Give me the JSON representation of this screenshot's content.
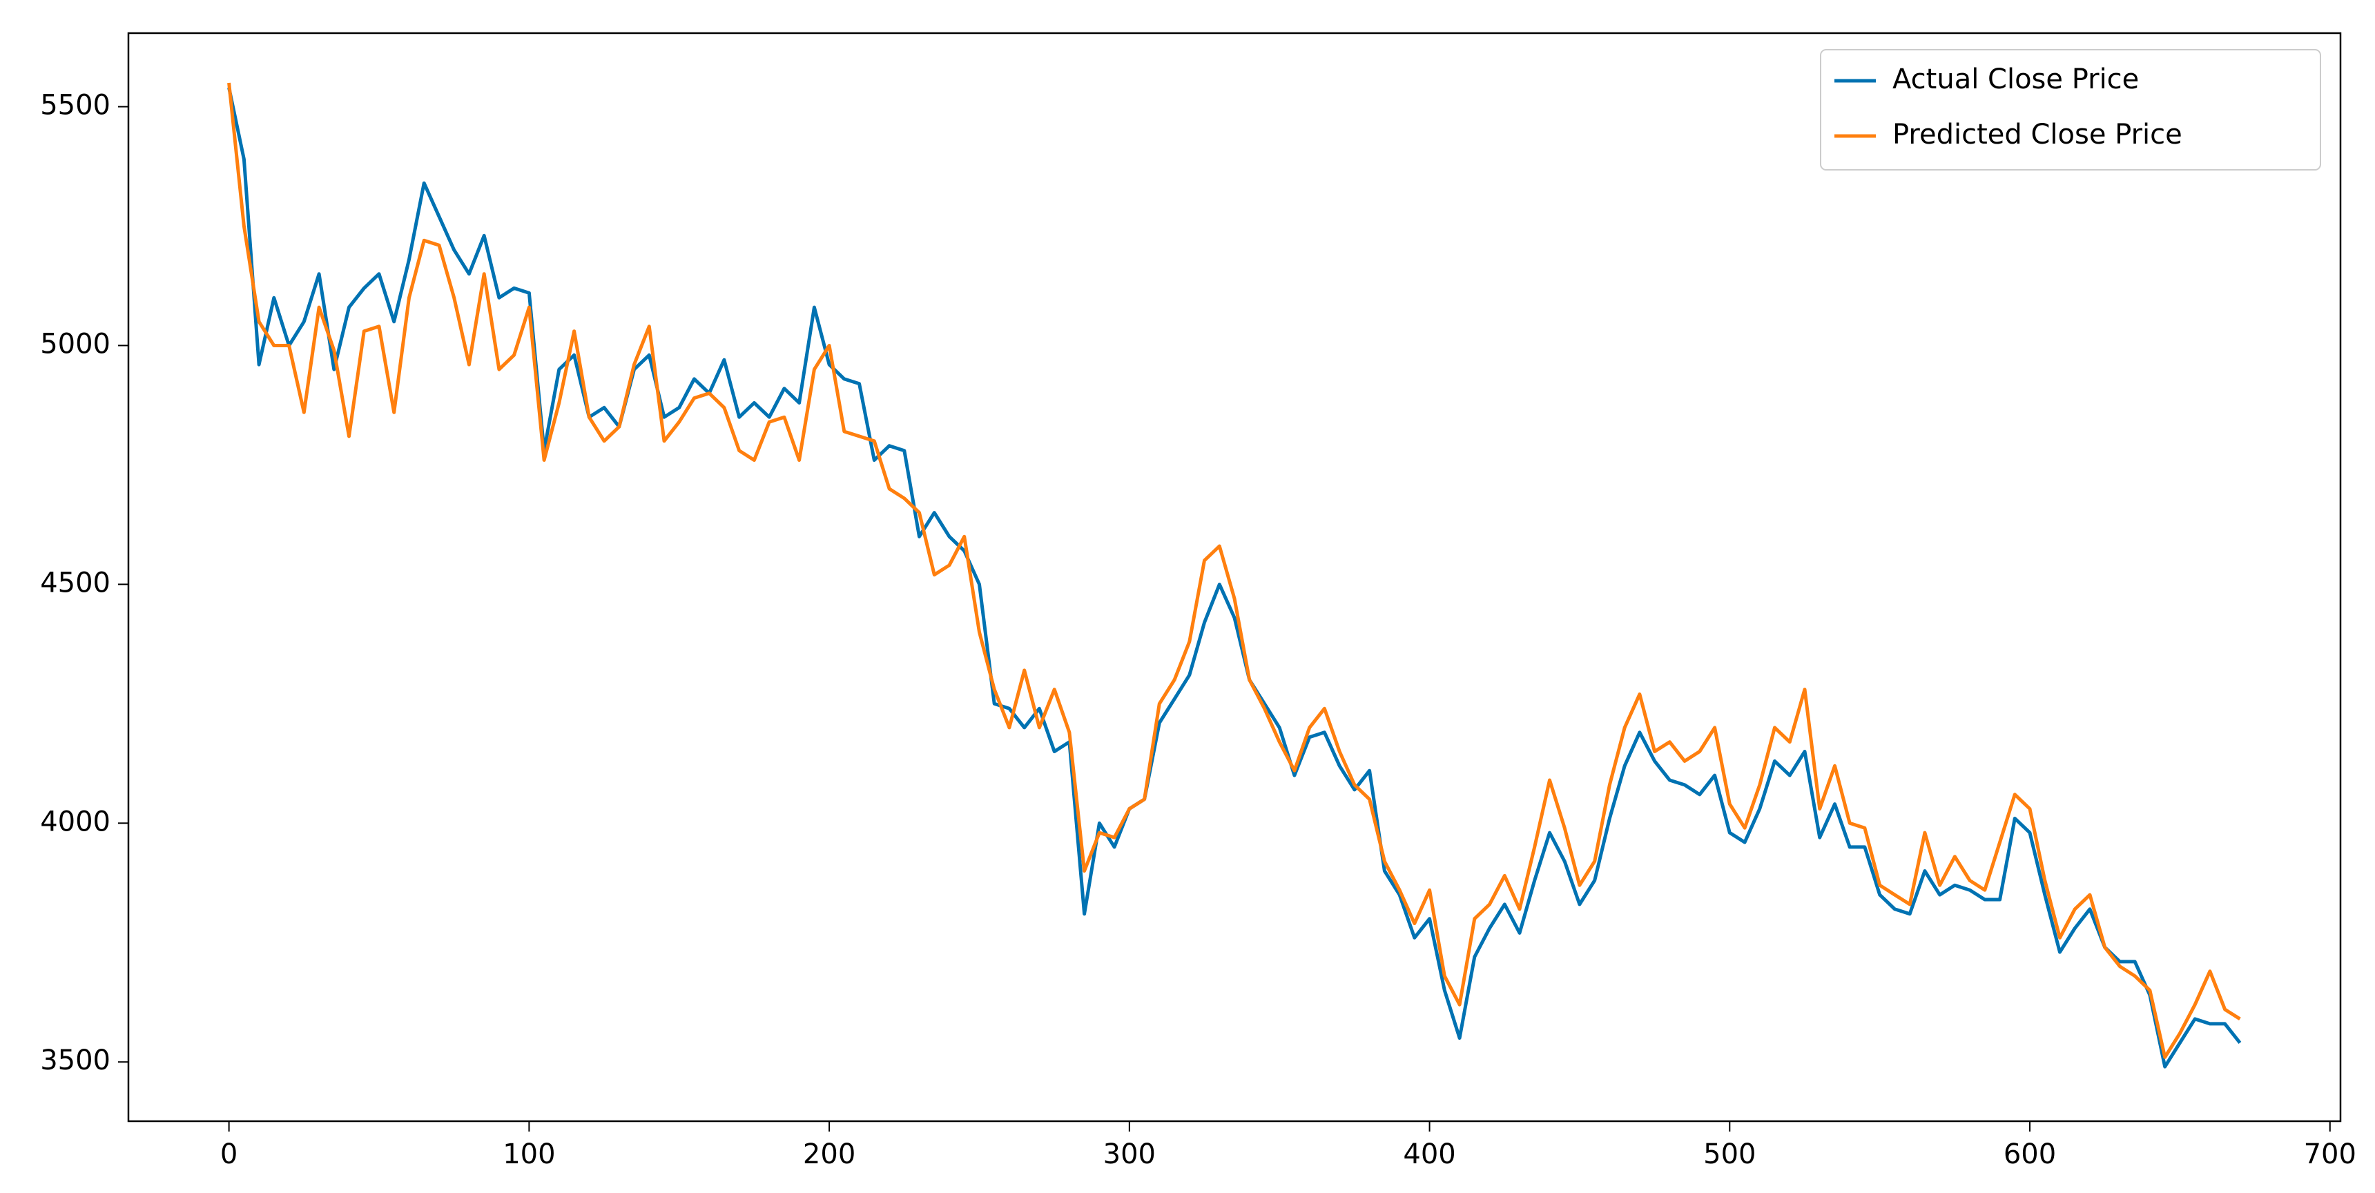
{
  "chart_data": {
    "type": "line",
    "x": [
      0,
      5,
      10,
      15,
      20,
      25,
      30,
      35,
      40,
      45,
      50,
      55,
      60,
      65,
      70,
      75,
      80,
      85,
      90,
      95,
      100,
      105,
      110,
      115,
      120,
      125,
      130,
      135,
      140,
      145,
      150,
      155,
      160,
      165,
      170,
      175,
      180,
      185,
      190,
      195,
      200,
      205,
      210,
      215,
      220,
      225,
      230,
      235,
      240,
      245,
      250,
      255,
      260,
      265,
      270,
      275,
      280,
      285,
      290,
      295,
      300,
      305,
      310,
      315,
      320,
      325,
      330,
      335,
      340,
      345,
      350,
      355,
      360,
      365,
      370,
      375,
      380,
      385,
      390,
      395,
      400,
      405,
      410,
      415,
      420,
      425,
      430,
      435,
      440,
      445,
      450,
      455,
      460,
      465,
      470,
      475,
      480,
      485,
      490,
      495,
      500,
      505,
      510,
      515,
      520,
      525,
      530,
      535,
      540,
      545,
      550,
      555,
      560,
      565,
      570,
      575,
      580,
      585,
      590,
      595,
      600,
      605,
      610,
      615,
      620,
      625,
      630,
      635,
      640,
      645,
      650,
      655,
      660,
      665,
      670
    ],
    "series": [
      {
        "name": "Actual Close Price",
        "color": "#0072b2",
        "values": [
          5540,
          5390,
          4960,
          5100,
          5000,
          5050,
          5150,
          4950,
          5080,
          5120,
          5150,
          5050,
          5180,
          5340,
          5270,
          5200,
          5150,
          5230,
          5100,
          5120,
          5110,
          4780,
          4950,
          4980,
          4850,
          4870,
          4830,
          4950,
          4980,
          4850,
          4870,
          4930,
          4900,
          4970,
          4850,
          4880,
          4850,
          4910,
          4880,
          5080,
          4960,
          4930,
          4920,
          4760,
          4790,
          4780,
          4600,
          4650,
          4600,
          4570,
          4500,
          4250,
          4240,
          4200,
          4240,
          4150,
          4170,
          3810,
          4000,
          3950,
          4030,
          4050,
          4210,
          4260,
          4310,
          4420,
          4500,
          4430,
          4300,
          4250,
          4200,
          4100,
          4180,
          4190,
          4120,
          4070,
          4110,
          3900,
          3850,
          3760,
          3800,
          3650,
          3550,
          3720,
          3780,
          3830,
          3770,
          3880,
          3980,
          3920,
          3830,
          3880,
          4010,
          4120,
          4190,
          4130,
          4090,
          4080,
          4060,
          4100,
          3980,
          3960,
          4030,
          4130,
          4100,
          4150,
          3970,
          4040,
          3950,
          3950,
          3850,
          3820,
          3810,
          3900,
          3850,
          3870,
          3860,
          3840,
          3840,
          4010,
          3980,
          3850,
          3730,
          3780,
          3820,
          3740,
          3710,
          3710,
          3640,
          3490,
          3540,
          3590,
          3580,
          3580,
          3540
        ]
      },
      {
        "name": "Predicted Close Price",
        "color": "#ff7f0e",
        "values": [
          5550,
          5250,
          5050,
          5000,
          5000,
          4860,
          5080,
          4990,
          4810,
          5030,
          5040,
          4860,
          5100,
          5220,
          5210,
          5100,
          4960,
          5150,
          4950,
          4980,
          5080,
          4760,
          4880,
          5030,
          4850,
          4800,
          4830,
          4960,
          5040,
          4800,
          4840,
          4890,
          4900,
          4870,
          4780,
          4760,
          4840,
          4850,
          4760,
          4950,
          5000,
          4820,
          4810,
          4800,
          4700,
          4680,
          4650,
          4520,
          4540,
          4600,
          4400,
          4280,
          4200,
          4320,
          4200,
          4280,
          4190,
          3900,
          3980,
          3970,
          4030,
          4050,
          4250,
          4300,
          4380,
          4550,
          4580,
          4470,
          4300,
          4240,
          4170,
          4110,
          4200,
          4240,
          4150,
          4080,
          4050,
          3920,
          3860,
          3790,
          3860,
          3680,
          3620,
          3800,
          3830,
          3890,
          3820,
          3950,
          4090,
          3990,
          3870,
          3920,
          4080,
          4200,
          4270,
          4150,
          4170,
          4130,
          4150,
          4200,
          4040,
          3990,
          4080,
          4200,
          4170,
          4280,
          4030,
          4120,
          4000,
          3990,
          3870,
          3850,
          3830,
          3980,
          3870,
          3930,
          3880,
          3860,
          3960,
          4060,
          4030,
          3880,
          3760,
          3820,
          3850,
          3740,
          3700,
          3680,
          3650,
          3510,
          3560,
          3620,
          3690,
          3610,
          3590
        ]
      }
    ],
    "xlim": [
      -33.5,
      703.5
    ],
    "ylim": [
      3376,
      5654
    ],
    "xticks": [
      0,
      100,
      200,
      300,
      400,
      500,
      600,
      700
    ],
    "yticks": [
      3500,
      4000,
      4500,
      5000,
      5500
    ],
    "legend": "upper right"
  }
}
